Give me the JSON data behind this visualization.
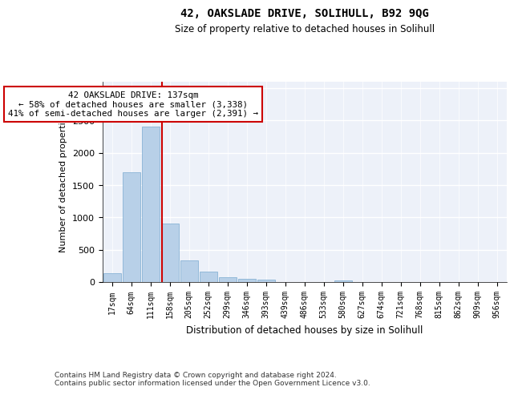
{
  "title1": "42, OAKSLADE DRIVE, SOLIHULL, B92 9QG",
  "title2": "Size of property relative to detached houses in Solihull",
  "xlabel": "Distribution of detached houses by size in Solihull",
  "ylabel": "Number of detached properties",
  "footnote1": "Contains HM Land Registry data © Crown copyright and database right 2024.",
  "footnote2": "Contains public sector information licensed under the Open Government Licence v3.0.",
  "annotation_line1": "42 OAKSLADE DRIVE: 137sqm",
  "annotation_line2": "← 58% of detached houses are smaller (3,338)",
  "annotation_line3": "41% of semi-detached houses are larger (2,391) →",
  "bar_color": "#b8d0e8",
  "bar_edge_color": "#7aaacf",
  "vline_color": "#cc0000",
  "annotation_box_edge": "#cc0000",
  "categories": [
    "17sqm",
    "64sqm",
    "111sqm",
    "158sqm",
    "205sqm",
    "252sqm",
    "299sqm",
    "346sqm",
    "393sqm",
    "439sqm",
    "486sqm",
    "533sqm",
    "580sqm",
    "627sqm",
    "674sqm",
    "721sqm",
    "768sqm",
    "815sqm",
    "862sqm",
    "909sqm",
    "956sqm"
  ],
  "values": [
    140,
    1700,
    2400,
    910,
    340,
    160,
    75,
    50,
    35,
    0,
    0,
    0,
    30,
    0,
    0,
    0,
    0,
    0,
    0,
    0,
    0
  ],
  "ylim": [
    0,
    3100
  ],
  "yticks": [
    0,
    500,
    1000,
    1500,
    2000,
    2500,
    3000
  ],
  "vline_x_index": 2.62,
  "background_color": "#edf1f9",
  "grid_color": "#ffffff"
}
